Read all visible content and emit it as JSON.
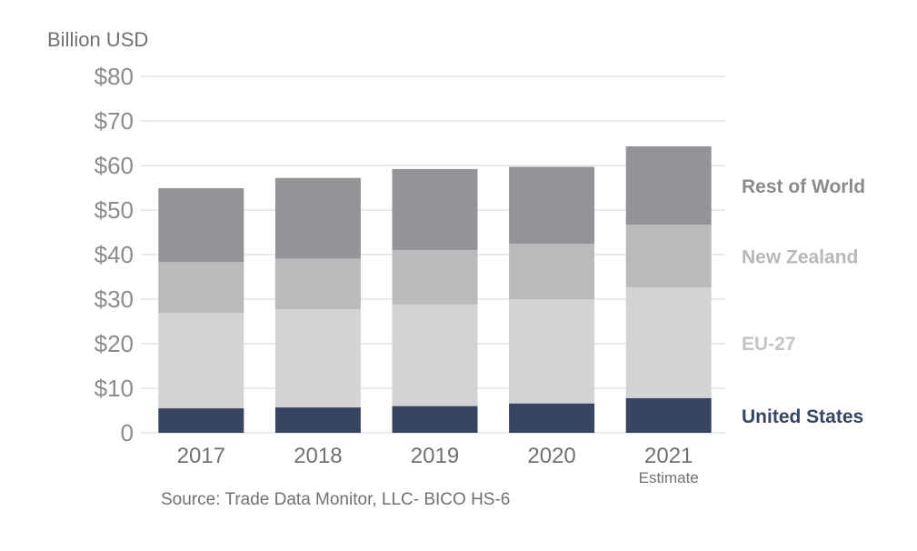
{
  "chart_data": {
    "type": "bar",
    "stacked": true,
    "ylabel": "Billion USD",
    "ylim": [
      0,
      80
    ],
    "yticks": [
      0,
      10,
      20,
      30,
      40,
      50,
      60,
      70,
      80
    ],
    "ytick_labels": [
      "0",
      "$10",
      "$20",
      "$30",
      "$40",
      "$50",
      "$60",
      "$70",
      "$80"
    ],
    "categories": [
      "2017",
      "2018",
      "2019",
      "2020",
      "2021"
    ],
    "category_sublabels": [
      "",
      "",
      "",
      "",
      "Estimate"
    ],
    "series": [
      {
        "name": "United States",
        "color": "#384560",
        "values": [
          5.5,
          5.7,
          6.0,
          6.6,
          7.8
        ]
      },
      {
        "name": "EU-27",
        "color": "#d2d3d5",
        "values": [
          21.4,
          22.0,
          22.8,
          23.4,
          24.8
        ]
      },
      {
        "name": "New Zealand",
        "color": "#b9babc",
        "values": [
          11.4,
          11.4,
          12.2,
          12.4,
          14.1
        ]
      },
      {
        "name": "Rest of World",
        "color": "#939497",
        "values": [
          16.6,
          18.1,
          18.2,
          17.3,
          17.6
        ]
      }
    ],
    "legend_text_colors": {
      "United States": "#384560",
      "EU-27": "#c4c5c7",
      "New Zealand": "#b7b8ba",
      "Rest of World": "#8a8b8e"
    },
    "grid": true,
    "legend": "right",
    "source": "Source: Trade Data Monitor, LLC- BICO HS-6"
  }
}
